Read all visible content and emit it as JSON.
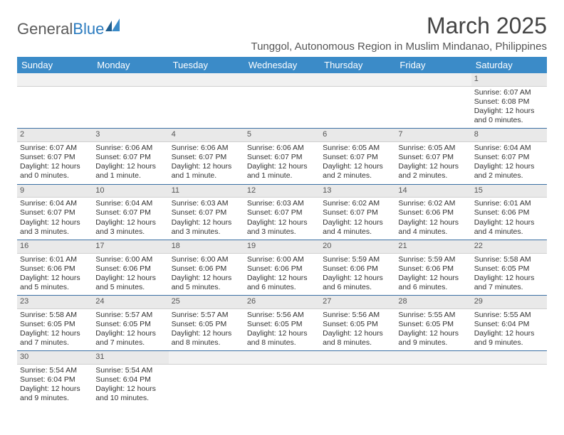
{
  "brand": {
    "name_a": "General",
    "name_b": "Blue"
  },
  "title": "March 2025",
  "location": "Tunggol, Autonomous Region in Muslim Mindanao, Philippines",
  "colors": {
    "header_bg": "#3b8bc8",
    "header_text": "#ffffff",
    "daynum_bg": "#e9e9e9",
    "cell_border": "#3b6fa3",
    "text": "#333333",
    "logo_gray": "#5a5a5a",
    "logo_blue": "#2b7bbf"
  },
  "day_headers": [
    "Sunday",
    "Monday",
    "Tuesday",
    "Wednesday",
    "Thursday",
    "Friday",
    "Saturday"
  ],
  "weeks": [
    [
      {
        "empty": true
      },
      {
        "empty": true
      },
      {
        "empty": true
      },
      {
        "empty": true
      },
      {
        "empty": true
      },
      {
        "empty": true
      },
      {
        "n": "1",
        "sunrise": "Sunrise: 6:07 AM",
        "sunset": "Sunset: 6:08 PM",
        "daylight1": "Daylight: 12 hours",
        "daylight2": "and 0 minutes."
      }
    ],
    [
      {
        "n": "2",
        "sunrise": "Sunrise: 6:07 AM",
        "sunset": "Sunset: 6:07 PM",
        "daylight1": "Daylight: 12 hours",
        "daylight2": "and 0 minutes."
      },
      {
        "n": "3",
        "sunrise": "Sunrise: 6:06 AM",
        "sunset": "Sunset: 6:07 PM",
        "daylight1": "Daylight: 12 hours",
        "daylight2": "and 1 minute."
      },
      {
        "n": "4",
        "sunrise": "Sunrise: 6:06 AM",
        "sunset": "Sunset: 6:07 PM",
        "daylight1": "Daylight: 12 hours",
        "daylight2": "and 1 minute."
      },
      {
        "n": "5",
        "sunrise": "Sunrise: 6:06 AM",
        "sunset": "Sunset: 6:07 PM",
        "daylight1": "Daylight: 12 hours",
        "daylight2": "and 1 minute."
      },
      {
        "n": "6",
        "sunrise": "Sunrise: 6:05 AM",
        "sunset": "Sunset: 6:07 PM",
        "daylight1": "Daylight: 12 hours",
        "daylight2": "and 2 minutes."
      },
      {
        "n": "7",
        "sunrise": "Sunrise: 6:05 AM",
        "sunset": "Sunset: 6:07 PM",
        "daylight1": "Daylight: 12 hours",
        "daylight2": "and 2 minutes."
      },
      {
        "n": "8",
        "sunrise": "Sunrise: 6:04 AM",
        "sunset": "Sunset: 6:07 PM",
        "daylight1": "Daylight: 12 hours",
        "daylight2": "and 2 minutes."
      }
    ],
    [
      {
        "n": "9",
        "sunrise": "Sunrise: 6:04 AM",
        "sunset": "Sunset: 6:07 PM",
        "daylight1": "Daylight: 12 hours",
        "daylight2": "and 3 minutes."
      },
      {
        "n": "10",
        "sunrise": "Sunrise: 6:04 AM",
        "sunset": "Sunset: 6:07 PM",
        "daylight1": "Daylight: 12 hours",
        "daylight2": "and 3 minutes."
      },
      {
        "n": "11",
        "sunrise": "Sunrise: 6:03 AM",
        "sunset": "Sunset: 6:07 PM",
        "daylight1": "Daylight: 12 hours",
        "daylight2": "and 3 minutes."
      },
      {
        "n": "12",
        "sunrise": "Sunrise: 6:03 AM",
        "sunset": "Sunset: 6:07 PM",
        "daylight1": "Daylight: 12 hours",
        "daylight2": "and 3 minutes."
      },
      {
        "n": "13",
        "sunrise": "Sunrise: 6:02 AM",
        "sunset": "Sunset: 6:07 PM",
        "daylight1": "Daylight: 12 hours",
        "daylight2": "and 4 minutes."
      },
      {
        "n": "14",
        "sunrise": "Sunrise: 6:02 AM",
        "sunset": "Sunset: 6:06 PM",
        "daylight1": "Daylight: 12 hours",
        "daylight2": "and 4 minutes."
      },
      {
        "n": "15",
        "sunrise": "Sunrise: 6:01 AM",
        "sunset": "Sunset: 6:06 PM",
        "daylight1": "Daylight: 12 hours",
        "daylight2": "and 4 minutes."
      }
    ],
    [
      {
        "n": "16",
        "sunrise": "Sunrise: 6:01 AM",
        "sunset": "Sunset: 6:06 PM",
        "daylight1": "Daylight: 12 hours",
        "daylight2": "and 5 minutes."
      },
      {
        "n": "17",
        "sunrise": "Sunrise: 6:00 AM",
        "sunset": "Sunset: 6:06 PM",
        "daylight1": "Daylight: 12 hours",
        "daylight2": "and 5 minutes."
      },
      {
        "n": "18",
        "sunrise": "Sunrise: 6:00 AM",
        "sunset": "Sunset: 6:06 PM",
        "daylight1": "Daylight: 12 hours",
        "daylight2": "and 5 minutes."
      },
      {
        "n": "19",
        "sunrise": "Sunrise: 6:00 AM",
        "sunset": "Sunset: 6:06 PM",
        "daylight1": "Daylight: 12 hours",
        "daylight2": "and 6 minutes."
      },
      {
        "n": "20",
        "sunrise": "Sunrise: 5:59 AM",
        "sunset": "Sunset: 6:06 PM",
        "daylight1": "Daylight: 12 hours",
        "daylight2": "and 6 minutes."
      },
      {
        "n": "21",
        "sunrise": "Sunrise: 5:59 AM",
        "sunset": "Sunset: 6:06 PM",
        "daylight1": "Daylight: 12 hours",
        "daylight2": "and 6 minutes."
      },
      {
        "n": "22",
        "sunrise": "Sunrise: 5:58 AM",
        "sunset": "Sunset: 6:05 PM",
        "daylight1": "Daylight: 12 hours",
        "daylight2": "and 7 minutes."
      }
    ],
    [
      {
        "n": "23",
        "sunrise": "Sunrise: 5:58 AM",
        "sunset": "Sunset: 6:05 PM",
        "daylight1": "Daylight: 12 hours",
        "daylight2": "and 7 minutes."
      },
      {
        "n": "24",
        "sunrise": "Sunrise: 5:57 AM",
        "sunset": "Sunset: 6:05 PM",
        "daylight1": "Daylight: 12 hours",
        "daylight2": "and 7 minutes."
      },
      {
        "n": "25",
        "sunrise": "Sunrise: 5:57 AM",
        "sunset": "Sunset: 6:05 PM",
        "daylight1": "Daylight: 12 hours",
        "daylight2": "and 8 minutes."
      },
      {
        "n": "26",
        "sunrise": "Sunrise: 5:56 AM",
        "sunset": "Sunset: 6:05 PM",
        "daylight1": "Daylight: 12 hours",
        "daylight2": "and 8 minutes."
      },
      {
        "n": "27",
        "sunrise": "Sunrise: 5:56 AM",
        "sunset": "Sunset: 6:05 PM",
        "daylight1": "Daylight: 12 hours",
        "daylight2": "and 8 minutes."
      },
      {
        "n": "28",
        "sunrise": "Sunrise: 5:55 AM",
        "sunset": "Sunset: 6:05 PM",
        "daylight1": "Daylight: 12 hours",
        "daylight2": "and 9 minutes."
      },
      {
        "n": "29",
        "sunrise": "Sunrise: 5:55 AM",
        "sunset": "Sunset: 6:04 PM",
        "daylight1": "Daylight: 12 hours",
        "daylight2": "and 9 minutes."
      }
    ],
    [
      {
        "n": "30",
        "sunrise": "Sunrise: 5:54 AM",
        "sunset": "Sunset: 6:04 PM",
        "daylight1": "Daylight: 12 hours",
        "daylight2": "and 9 minutes."
      },
      {
        "n": "31",
        "sunrise": "Sunrise: 5:54 AM",
        "sunset": "Sunset: 6:04 PM",
        "daylight1": "Daylight: 12 hours",
        "daylight2": "and 10 minutes."
      },
      {
        "empty": true
      },
      {
        "empty": true
      },
      {
        "empty": true
      },
      {
        "empty": true
      },
      {
        "empty": true
      }
    ]
  ]
}
